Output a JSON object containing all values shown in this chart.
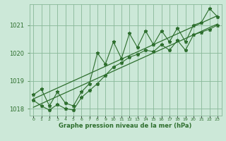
{
  "xlabel": "Graphe pression niveau de la mer (hPa)",
  "background_color": "#cce8d8",
  "grid_color": "#88b898",
  "line_color": "#2d6e2d",
  "hours": [
    0,
    1,
    2,
    3,
    4,
    5,
    6,
    7,
    8,
    9,
    10,
    11,
    12,
    13,
    14,
    15,
    16,
    17,
    18,
    19,
    20,
    21,
    22,
    23
  ],
  "pressure": [
    1018.5,
    1018.7,
    1018.1,
    1018.6,
    1018.2,
    1018.1,
    1018.6,
    1018.9,
    1020.0,
    1019.6,
    1020.4,
    1019.8,
    1020.7,
    1020.2,
    1020.8,
    1020.3,
    1020.8,
    1020.4,
    1020.9,
    1020.4,
    1021.0,
    1021.1,
    1021.6,
    1021.3
  ],
  "pressure_low": [
    1018.3,
    1018.1,
    1017.95,
    1018.15,
    1018.0,
    1017.95,
    1018.4,
    1018.65,
    1018.9,
    1019.2,
    1019.5,
    1019.65,
    1019.85,
    1019.95,
    1020.1,
    1020.05,
    1020.3,
    1020.1,
    1020.45,
    1020.1,
    1020.65,
    1020.75,
    1020.85,
    1021.0
  ],
  "trend_low": [
    1018.05,
    1018.18,
    1018.31,
    1018.44,
    1018.57,
    1018.7,
    1018.83,
    1018.96,
    1019.09,
    1019.22,
    1019.35,
    1019.48,
    1019.61,
    1019.74,
    1019.87,
    1020.0,
    1020.13,
    1020.26,
    1020.39,
    1020.52,
    1020.65,
    1020.78,
    1020.91,
    1021.04
  ],
  "trend_high": [
    1018.35,
    1018.48,
    1018.61,
    1018.74,
    1018.87,
    1019.0,
    1019.13,
    1019.26,
    1019.39,
    1019.52,
    1019.65,
    1019.78,
    1019.91,
    1020.04,
    1020.17,
    1020.3,
    1020.43,
    1020.56,
    1020.69,
    1020.82,
    1020.95,
    1021.08,
    1021.21,
    1021.34
  ],
  "ylim_min": 1017.75,
  "ylim_max": 1021.75,
  "yticks": [
    1018,
    1019,
    1020,
    1021
  ],
  "marker": "*",
  "marker_size": 3.5
}
